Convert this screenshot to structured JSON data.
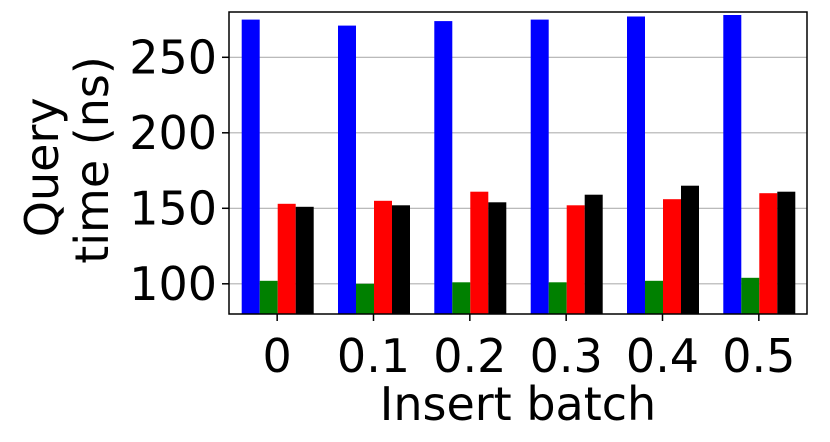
{
  "chart_data": {
    "type": "bar",
    "title": "",
    "xlabel": "Insert batch",
    "ylabel_lines": [
      "Query",
      "time (ns)"
    ],
    "categories": [
      "0",
      "0.1",
      "0.2",
      "0.3",
      "0.4",
      "0.5"
    ],
    "ylim": [
      80,
      280
    ],
    "yticks": [
      100,
      150,
      200,
      250
    ],
    "grid": "y",
    "legend": "none",
    "series": [
      {
        "color": "#0000ff",
        "values": [
          275,
          271,
          274,
          275,
          277,
          278
        ]
      },
      {
        "color": "#008000",
        "values": [
          102,
          100,
          101,
          101,
          102,
          104
        ]
      },
      {
        "color": "#ff0000",
        "values": [
          153,
          155,
          161,
          152,
          156,
          160
        ]
      },
      {
        "color": "#000000",
        "values": [
          151,
          152,
          154,
          159,
          165,
          161
        ]
      }
    ]
  }
}
